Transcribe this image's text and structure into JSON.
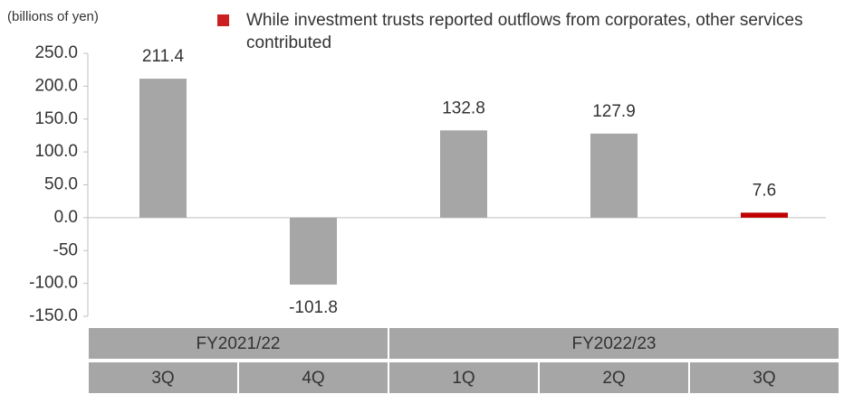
{
  "chart_data": {
    "type": "bar",
    "axis_label": "(billions of yen)",
    "legend": {
      "color": "#cc1f1f",
      "text": "While investment trusts reported outflows from corporates, other services contributed"
    },
    "categories": [
      "3Q",
      "4Q",
      "1Q",
      "2Q",
      "3Q"
    ],
    "values": [
      211.4,
      -101.8,
      132.8,
      127.9,
      7.6
    ],
    "colors": [
      "#a6a6a6",
      "#a6a6a6",
      "#a6a6a6",
      "#a6a6a6",
      "#c00000"
    ],
    "groups": [
      {
        "label": "FY2021/22",
        "span": 2
      },
      {
        "label": "FY2022/23",
        "span": 3
      }
    ],
    "ylim": [
      -150,
      250
    ],
    "yticks": [
      {
        "value": 250,
        "label": "250.0"
      },
      {
        "value": 200,
        "label": "200.0"
      },
      {
        "value": 150,
        "label": "150.0"
      },
      {
        "value": 100,
        "label": "100.0"
      },
      {
        "value": 50,
        "label": "50.0"
      },
      {
        "value": 0,
        "label": "0.0"
      },
      -50,
      {
        "value": -100,
        "label": "-100.0"
      },
      {
        "value": -150,
        "label": "-150.0"
      }
    ]
  }
}
